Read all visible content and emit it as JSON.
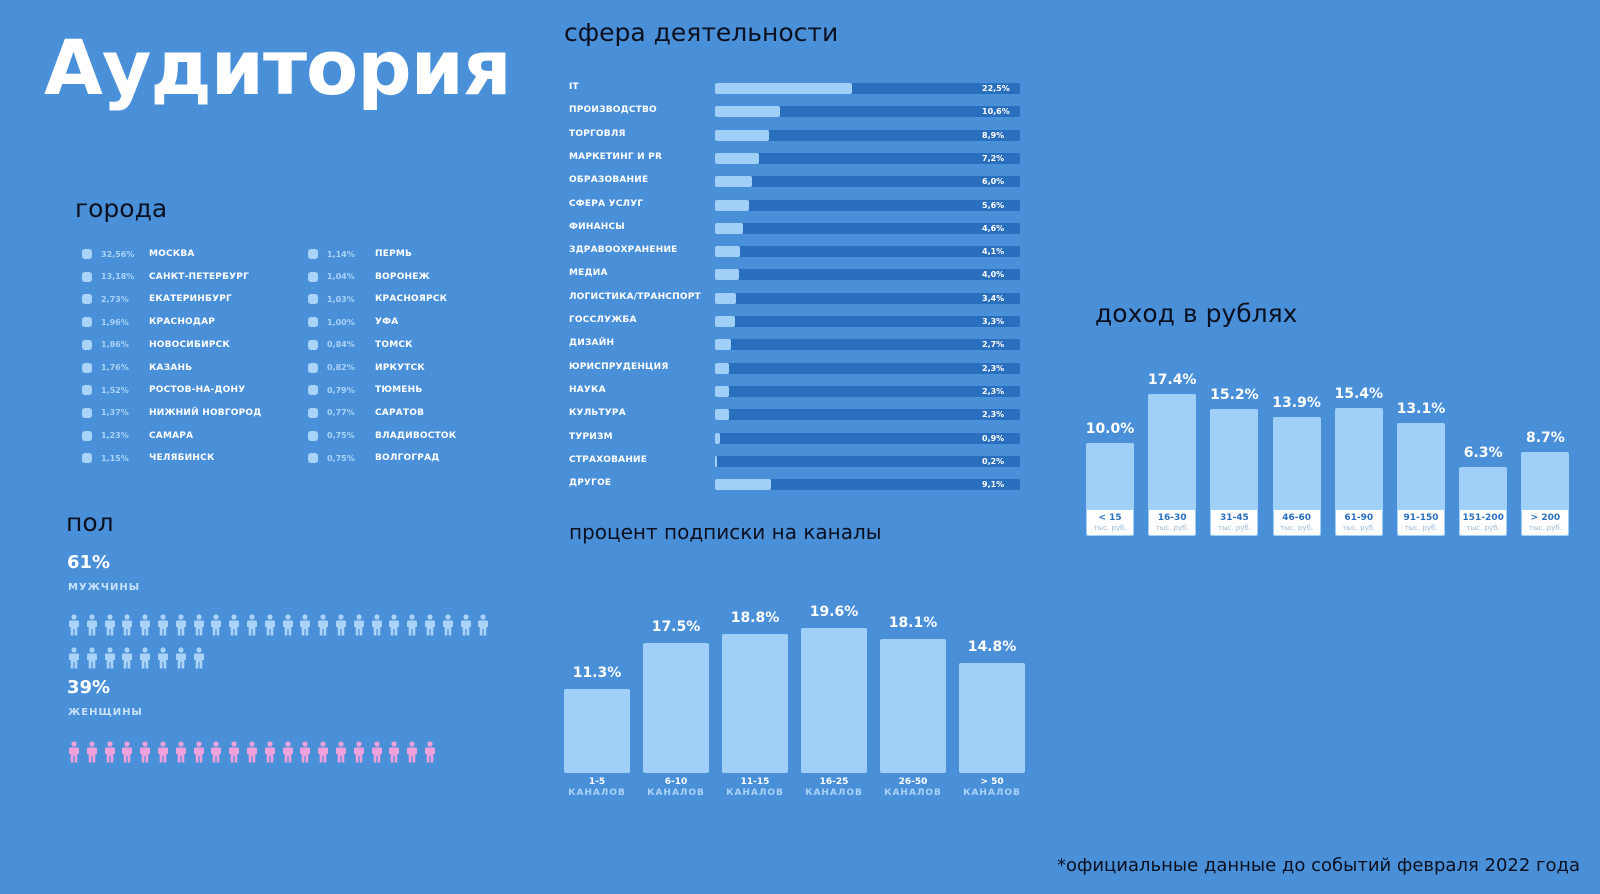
{
  "title": "Аудитория",
  "cities": {
    "title": "города",
    "items": [
      {
        "pct": "32,56%",
        "name": "МОСКВА"
      },
      {
        "pct": "13,18%",
        "name": "САНКТ-ПЕТЕРБУРГ"
      },
      {
        "pct": "2,73%",
        "name": "ЕКАТЕРИНБУРГ"
      },
      {
        "pct": "1,96%",
        "name": "КРАСНОДАР"
      },
      {
        "pct": "1,86%",
        "name": "НОВОСИБИРСК"
      },
      {
        "pct": "1,76%",
        "name": "КАЗАНЬ"
      },
      {
        "pct": "1,52%",
        "name": "РОСТОВ-НА-ДОНУ"
      },
      {
        "pct": "1,37%",
        "name": "НИЖНИЙ НОВГОРОД"
      },
      {
        "pct": "1,23%",
        "name": "САМАРА"
      },
      {
        "pct": "1,15%",
        "name": "ЧЕЛЯБИНСК"
      },
      {
        "pct": "1,14%",
        "name": "ПЕРМЬ"
      },
      {
        "pct": "1,04%",
        "name": "ВОРОНЕЖ"
      },
      {
        "pct": "1,03%",
        "name": "КРАСНОЯРСК"
      },
      {
        "pct": "1,00%",
        "name": "УФА"
      },
      {
        "pct": "0,84%",
        "name": "ТОМСК"
      },
      {
        "pct": "0,82%",
        "name": "ИРКУТСК"
      },
      {
        "pct": "0,79%",
        "name": "ТЮМЕНЬ"
      },
      {
        "pct": "0,77%",
        "name": "САРАТОВ"
      },
      {
        "pct": "0,75%",
        "name": "ВЛАДИВОСТОК"
      },
      {
        "pct": "0,75%",
        "name": "ВОЛГОГРАД"
      }
    ]
  },
  "gender": {
    "title": "пол",
    "male": {
      "pct": "61%",
      "label": "МУЖЧИНЫ",
      "icon_count": 32,
      "color": "#a9d3f8"
    },
    "female": {
      "pct": "39%",
      "label": "ЖЕНЩИНЫ",
      "icon_count": 21,
      "color": "#f0a0dc"
    }
  },
  "footnote": "*официальные данные до событий февраля 2022 года",
  "chart_data": [
    {
      "type": "bar",
      "orientation": "horizontal",
      "title": "сфера деятельности",
      "categories": [
        "IT",
        "ПРОИЗВОДСТВО",
        "ТОРГОВЛЯ",
        "МАРКЕТИНГ И PR",
        "ОБРАЗОВАНИЕ",
        "СФЕРА УСЛУГ",
        "ФИНАНСЫ",
        "ЗДРАВООХРАНЕНИЕ",
        "МЕДИА",
        "ЛОГИСТИКА/ТРАНСПОРТ",
        "ГОССЛУЖБА",
        "ДИЗАЙН",
        "ЮРИСПРУДЕНЦИЯ",
        "НАУКА",
        "КУЛЬТУРА",
        "ТУРИЗМ",
        "СТРАХОВАНИЕ",
        "ДРУГОЕ"
      ],
      "values": [
        22.5,
        10.6,
        8.9,
        7.2,
        6.0,
        5.6,
        4.6,
        4.1,
        4.0,
        3.4,
        3.3,
        2.7,
        2.3,
        2.3,
        2.3,
        0.9,
        0.2,
        9.1
      ],
      "labels": [
        "22,5%",
        "10,6%",
        "8,9%",
        "7,2%",
        "6,0%",
        "5,6%",
        "4,6%",
        "4,1%",
        "4,0%",
        "3,4%",
        "3,3%",
        "2,7%",
        "2,3%",
        "2,3%",
        "2,3%",
        "0,9%",
        "0,2%",
        "9,1%"
      ],
      "xlim": [
        0,
        50
      ],
      "colors": {
        "fill": "#a0d0f8",
        "track": "#2a6fbd"
      }
    },
    {
      "type": "bar",
      "title": "доход в рублях",
      "categories": [
        "< 15",
        "16-30",
        "31-45",
        "46-60",
        "61-90",
        "91-150",
        "151-200",
        "> 200"
      ],
      "category_sub": "тыс. руб.",
      "values": [
        10.0,
        17.4,
        15.2,
        13.9,
        15.4,
        13.1,
        6.3,
        8.7
      ],
      "labels": [
        "10.0%",
        "17.4%",
        "15.2%",
        "13.9%",
        "15.4%",
        "13.1%",
        "6.3%",
        "8.7%"
      ],
      "ylim": [
        0,
        20
      ],
      "colors": {
        "bar": "#a0d0f8"
      }
    },
    {
      "type": "bar",
      "title": "процент подписки на каналы",
      "categories": [
        "1-5",
        "6-10",
        "11-15",
        "16-25",
        "26-50",
        "> 50"
      ],
      "category_sub": "КАНАЛОВ",
      "values": [
        11.3,
        17.5,
        18.8,
        19.6,
        18.1,
        14.8
      ],
      "labels": [
        "11.3%",
        "17.5%",
        "18.8%",
        "19.6%",
        "18.1%",
        "14.8%"
      ],
      "ylim": [
        0,
        20
      ],
      "colors": {
        "bar": "#a0d0f8"
      }
    }
  ]
}
